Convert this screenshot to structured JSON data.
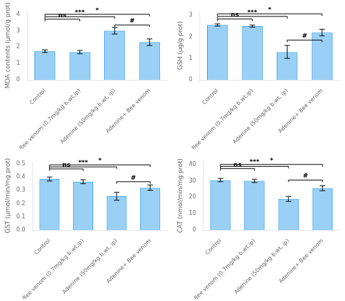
{
  "chart_data": [
    {
      "type": "bar",
      "categories": [
        "Control",
        "Bee venom (0.7mg/kg b.wt,ip)",
        "Adenine (50mg/kg b.wt, ip)",
        "Adenine+ Bee venom"
      ],
      "values": [
        1.75,
        1.7,
        3.0,
        2.3
      ],
      "errors": [
        0.08,
        0.1,
        0.2,
        0.2
      ],
      "y_label": "MDA contents (μmol/g prot)",
      "ylim": [
        0,
        4.2
      ],
      "yticks": [
        0,
        1,
        2,
        3,
        4
      ],
      "grid": false,
      "annotations": [
        {
          "from": "Control",
          "to": "Bee venom (0.7mg/kg b.wt,ip)",
          "y": 3.7,
          "text": "ns"
        },
        {
          "from": "Control",
          "to": "Adenine (50mg/kg b.wt, ip)",
          "y": 3.85,
          "text": "***"
        },
        {
          "from": "Control",
          "to": "Adenine+ Bee venom",
          "y": 4.0,
          "text": "*"
        },
        {
          "from": "Adenine (50mg/kg b.wt, ip)",
          "to": "Adenine+ Bee venom",
          "y": 3.35,
          "text": "#"
        }
      ]
    },
    {
      "type": "bar",
      "categories": [
        "Control",
        "Bee venom (0.7mg/kg b.wt,ip)",
        "Adenine (50mg/kg b.wt, ip)",
        "Adenine+ Bee venom"
      ],
      "values": [
        2.55,
        2.5,
        1.3,
        2.2
      ],
      "errors": [
        0.05,
        0.05,
        0.3,
        0.15
      ],
      "y_label": "GSH (μg/g prot)",
      "ylim": [
        0,
        3.2
      ],
      "yticks": [
        0,
        1,
        2,
        3
      ],
      "grid": false,
      "annotations": [
        {
          "from": "Control",
          "to": "Bee venom (0.7mg/kg b.wt,ip)",
          "y": 2.83,
          "text": "ns"
        },
        {
          "from": "Control",
          "to": "Adenine (50mg/kg b.wt, ip)",
          "y": 2.95,
          "text": "***"
        },
        {
          "from": "Control",
          "to": "Adenine+ Bee venom",
          "y": 3.07,
          "text": "*"
        },
        {
          "from": "Adenine (50mg/kg b.wt, ip)",
          "to": "Adenine+ Bee venom",
          "y": 1.85,
          "text": "#"
        }
      ]
    },
    {
      "type": "bar",
      "categories": [
        "Control",
        "Bee venom (0.7mg/kg b.wt,ip)",
        "Adenine (50mg/kg b.wt, ip)",
        "Adenine+ Bee venom"
      ],
      "values": [
        0.385,
        0.365,
        0.255,
        0.32
      ],
      "errors": [
        0.015,
        0.015,
        0.03,
        0.02
      ],
      "y_label": "GST (μmol/min/mg prot)",
      "ylim": [
        0,
        0.52
      ],
      "yticks": [
        {
          "value": 0,
          "label": "0.0"
        },
        0.1,
        0.2,
        0.3,
        0.4,
        0.5
      ],
      "grid": false,
      "annotations": [
        {
          "from": "Control",
          "to": "Bee venom (0.7mg/kg b.wt,ip)",
          "y": 0.462,
          "text": "ns"
        },
        {
          "from": "Control",
          "to": "Adenine (50mg/kg b.wt, ip)",
          "y": 0.477,
          "text": "***"
        },
        {
          "from": "Control",
          "to": "Adenine+ Bee venom",
          "y": 0.492,
          "text": "*"
        },
        {
          "from": "Adenine (50mg/kg b.wt, ip)",
          "to": "Adenine+ Bee venom",
          "y": 0.365,
          "text": "#"
        }
      ]
    },
    {
      "type": "bar",
      "categories": [
        "Control",
        "Bee venom (0.7mg/kg b.wt,ip)",
        "Adenine (50mg/kg b.wt, ip)",
        "Adenine+ Bee venom"
      ],
      "values": [
        30.5,
        30.0,
        19.0,
        25.5
      ],
      "errors": [
        1.0,
        1.0,
        1.5,
        1.5
      ],
      "y_label": "CAT (nmol/min/mg prot)",
      "ylim": [
        0,
        42
      ],
      "yticks": [
        0,
        10,
        20,
        30,
        40
      ],
      "grid": false,
      "annotations": [
        {
          "from": "Control",
          "to": "Bee venom (0.7mg/kg b.wt,ip)",
          "y": 37.5,
          "text": "ns"
        },
        {
          "from": "Control",
          "to": "Adenine (50mg/kg b.wt, ip)",
          "y": 38.8,
          "text": "***"
        },
        {
          "from": "Control",
          "to": "Adenine+ Bee venom",
          "y": 40.0,
          "text": "*"
        },
        {
          "from": "Adenine (50mg/kg b.wt, ip)",
          "to": "Adenine+ Bee venom",
          "y": 30.5,
          "text": "#"
        }
      ]
    }
  ]
}
